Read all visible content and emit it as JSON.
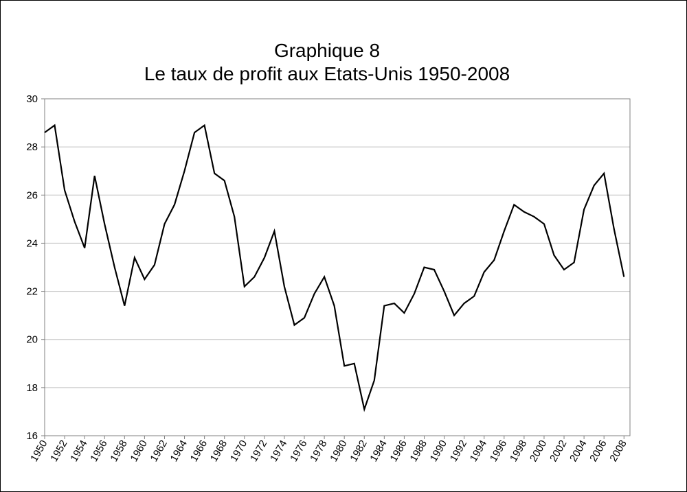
{
  "chart_data": {
    "type": "line",
    "title": "Graphique 8",
    "subtitle": "Le taux de profit aux Etats-Unis 1950-2008",
    "xlabel": "",
    "ylabel": "",
    "ylim": [
      16,
      30
    ],
    "yticks": [
      "16",
      "18",
      "20",
      "22",
      "24",
      "26",
      "28",
      "30"
    ],
    "xticks": [
      "1950",
      "1952",
      "1954",
      "1956",
      "1958",
      "1960",
      "1962",
      "1964",
      "1966",
      "1968",
      "1970",
      "1972",
      "1974",
      "1976",
      "1978",
      "1980",
      "1982",
      "1984",
      "1986",
      "1988",
      "1990",
      "1992",
      "1994",
      "1996",
      "1998",
      "2000",
      "2002",
      "2004",
      "2006",
      "2008"
    ],
    "grid": true,
    "legend": "none",
    "line_color": "#000000",
    "grid_color": "#c0c0c0",
    "x": [
      1950,
      1951,
      1952,
      1953,
      1954,
      1955,
      1956,
      1957,
      1958,
      1959,
      1960,
      1961,
      1962,
      1963,
      1964,
      1965,
      1966,
      1967,
      1968,
      1969,
      1970,
      1971,
      1972,
      1973,
      1974,
      1975,
      1976,
      1977,
      1978,
      1979,
      1980,
      1981,
      1982,
      1983,
      1984,
      1985,
      1986,
      1987,
      1988,
      1989,
      1990,
      1991,
      1992,
      1993,
      1994,
      1995,
      1996,
      1997,
      1998,
      1999,
      2000,
      2001,
      2002,
      2003,
      2004,
      2005,
      2006,
      2007,
      2008
    ],
    "series": [
      {
        "values": [
          28.6,
          28.9,
          26.2,
          24.9,
          23.8,
          26.8,
          24.8,
          23.0,
          21.4,
          23.4,
          22.5,
          23.1,
          24.8,
          25.6,
          27.0,
          28.6,
          28.9,
          26.9,
          26.6,
          25.1,
          22.2,
          22.6,
          23.4,
          24.5,
          22.2,
          20.6,
          20.9,
          21.9,
          22.6,
          21.4,
          18.9,
          19.0,
          17.1,
          18.3,
          21.4,
          21.5,
          21.1,
          21.9,
          23.0,
          22.9,
          22.0,
          21.0,
          21.5,
          21.8,
          22.8,
          23.3,
          24.5,
          25.6,
          25.3,
          25.1,
          24.8,
          23.5,
          22.9,
          23.2,
          25.4,
          26.4,
          26.9,
          24.6,
          22.6
        ]
      }
    ]
  }
}
